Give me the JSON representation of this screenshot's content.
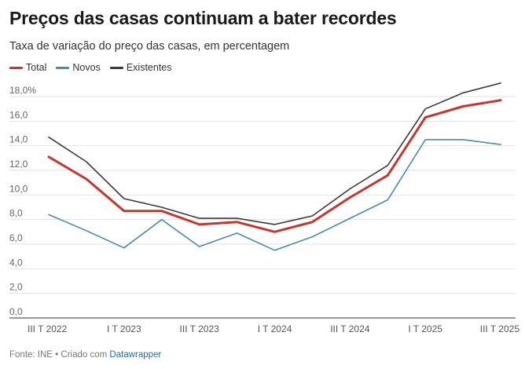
{
  "header": {
    "title": "Preços das casas continuam a bater recordes",
    "subtitle": "Taxa de variação do preço das casas, em percentagem"
  },
  "footer": {
    "source": "Fonte: INE • Criado com ",
    "tool": "Datawrapper"
  },
  "colors": {
    "total": "#c9352b",
    "novos": "#4a8bb0",
    "existentes": "#3a3a3a"
  },
  "chart_data": {
    "type": "line",
    "title": "Preços das casas continuam a bater recordes",
    "subtitle": "Taxa de variação do preço das casas, em percentagem",
    "xlabel": "",
    "ylabel": "",
    "ylim": [
      0,
      18
    ],
    "yticks": [
      0,
      2,
      4,
      6,
      8,
      10,
      12,
      14,
      16,
      18
    ],
    "ytick_labels": [
      "0,0",
      "2,0",
      "4,0",
      "6,0",
      "8,0",
      "10,0",
      "12,0",
      "14,0",
      "16,0",
      "18,0%"
    ],
    "categories": [
      "III T 2022",
      "IV T 2022",
      "I T 2023",
      "II T 2023",
      "III T 2023",
      "IV T 2023",
      "I T 2024",
      "II T 2024",
      "III T 2024",
      "IV T 2024",
      "I T 2025",
      "II T 2025",
      "III T 2025"
    ],
    "xtick_labels": [
      "III T 2022",
      "",
      "I T 2023",
      "",
      "III T 2023",
      "",
      "I T 2024",
      "",
      "III T 2024",
      "",
      "I T 2025",
      "",
      "III T 2025"
    ],
    "grid": true,
    "legend_position": "top-left",
    "series": [
      {
        "name": "Total",
        "key": "total",
        "values": [
          13.1,
          11.3,
          8.7,
          8.7,
          7.6,
          7.8,
          7.0,
          7.8,
          9.8,
          11.6,
          16.3,
          17.2,
          17.7
        ]
      },
      {
        "name": "Novos",
        "key": "novos",
        "values": [
          8.4,
          7.1,
          5.7,
          8.0,
          5.8,
          6.9,
          5.5,
          6.6,
          8.1,
          9.6,
          14.5,
          14.5,
          14.1
        ]
      },
      {
        "name": "Existentes",
        "key": "existentes",
        "values": [
          14.7,
          12.7,
          9.7,
          9.0,
          8.1,
          8.1,
          7.6,
          8.3,
          10.5,
          12.4,
          17.0,
          18.3,
          19.1
        ]
      }
    ]
  }
}
